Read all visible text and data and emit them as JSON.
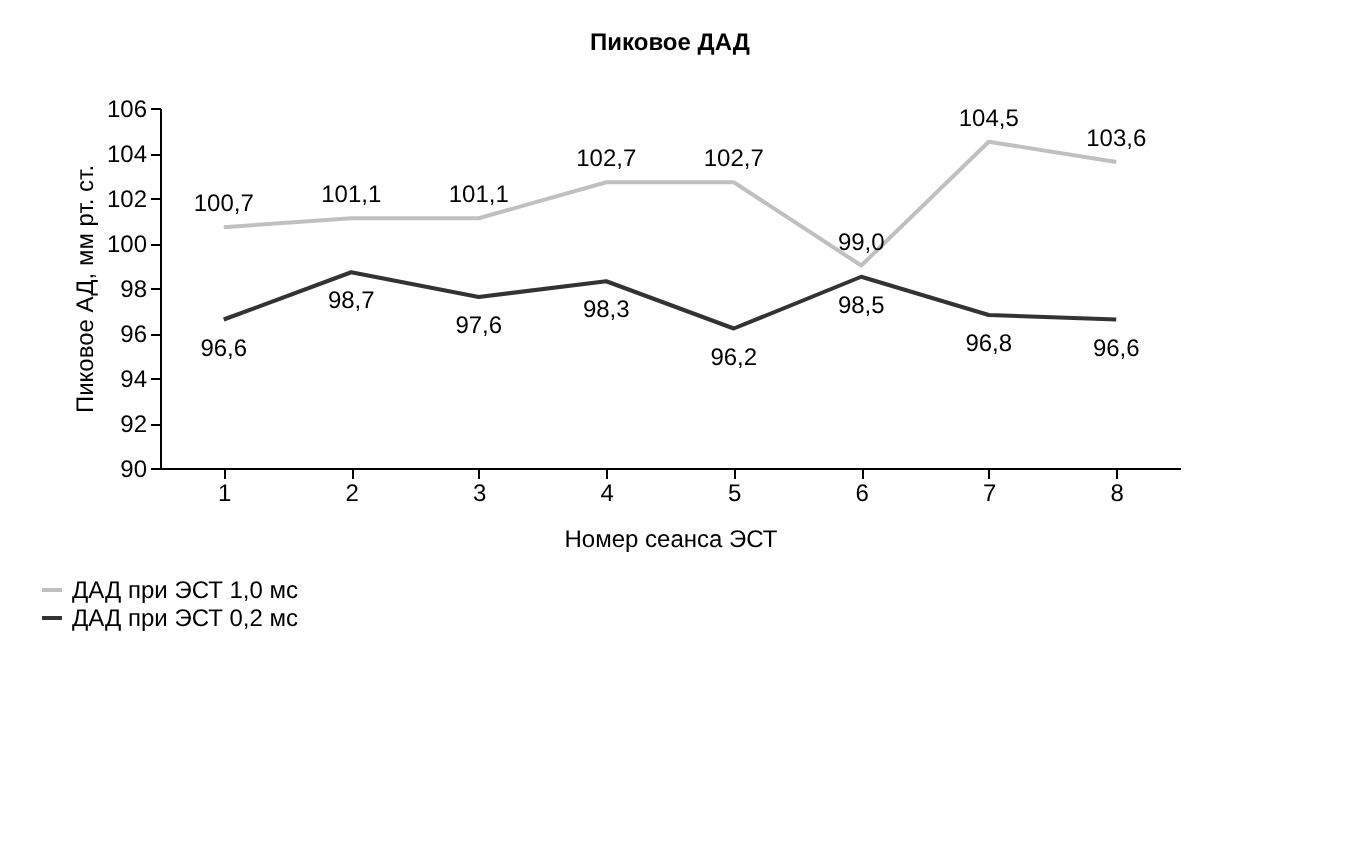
{
  "chart_data": {
    "type": "line",
    "title": "Пиковое ДАД",
    "xlabel": "Номер сеанса ЭСТ",
    "ylabel": "Пиковое АД, мм рт. ст.",
    "categories": [
      "1",
      "2",
      "3",
      "4",
      "5",
      "6",
      "7",
      "8"
    ],
    "series": [
      {
        "name": "ДАД при ЭСТ 1,0 мс",
        "color": "#c0c0c0",
        "values": [
          100.7,
          101.1,
          101.1,
          102.7,
          102.7,
          99.0,
          104.5,
          103.6
        ],
        "value_labels": [
          "100,7",
          "101,1",
          "101,1",
          "102,7",
          "102,7",
          "99,0",
          "104,5",
          "103,6"
        ]
      },
      {
        "name": "ДАД при ЭСТ 0,2 мс",
        "color": "#333333",
        "values": [
          96.6,
          98.7,
          97.6,
          98.3,
          96.2,
          98.5,
          96.8,
          96.6
        ],
        "value_labels": [
          "96,6",
          "98,7",
          "97,6",
          "98,3",
          "96,2",
          "98,5",
          "96,8",
          "96,6"
        ]
      }
    ],
    "ylim": [
      90,
      106
    ],
    "yticks": [
      90,
      92,
      94,
      96,
      98,
      100,
      102,
      104,
      106
    ],
    "grid": false,
    "legend": "bottom left",
    "marker": "none",
    "line_style": "solid"
  }
}
